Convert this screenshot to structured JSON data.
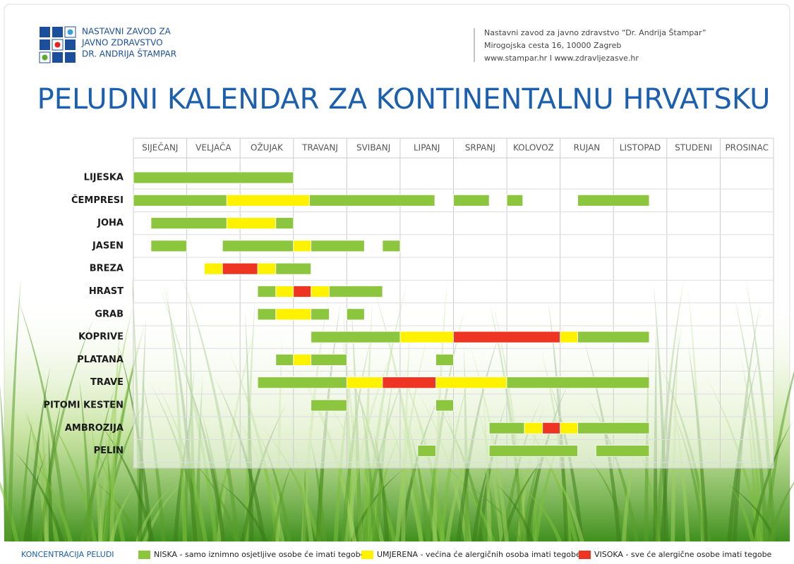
{
  "header": {
    "logo_lines": [
      "NASTAVNI ZAVOD ZA",
      "JAVNO ZDRAVSTVO",
      "DR. ANDRIJA ŠTAMPAR"
    ],
    "address_lines": [
      "Nastavni zavod za javno zdravstvo “Dr. Andrija Štampar”",
      "Mirogojska cesta 16, 10000 Zagreb",
      "www.stampar.hr   I   www.zdravljezasve.hr"
    ]
  },
  "chart_data": {
    "type": "timeline",
    "title": "PELUDNI KALENDAR ZA KONTINENTALNU HRVATSKU",
    "categories": [
      "SIJEČANJ",
      "VELJAČA",
      "OŽUJAK",
      "TRAVANJ",
      "SVIBANJ",
      "LIPANJ",
      "SRPANJ",
      "KOLOVOZ",
      "RUJAN",
      "LISTOPAD",
      "STUDENI",
      "PROSINAC"
    ],
    "xlim": [
      0,
      12
    ],
    "legend_title": "KONCENTRACIJA PELUDI",
    "legend": [
      {
        "name": "NISKA",
        "description": " - samo iznimno osjetljive osobe će imati tegobe",
        "color": "#8cc63f"
      },
      {
        "name": "UMJERENA",
        "description": " - većina će alergičnih osoba imati tegobe",
        "color": "#fff200"
      },
      {
        "name": "VISOKA",
        "description": "  - sve će alergične osobe imati tegobe",
        "color": "#ee3524"
      }
    ],
    "rows": [
      {
        "name": "LIJESKA",
        "segments": [
          {
            "start": 0,
            "end": 3,
            "color": "#8cc63f"
          }
        ]
      },
      {
        "name": "ČEMPRESI",
        "segments": [
          {
            "start": 0,
            "end": 1.75,
            "color": "#8cc63f"
          },
          {
            "start": 1.75,
            "end": 3.3,
            "color": "#fff200"
          },
          {
            "start": 3.3,
            "end": 5.65,
            "color": "#8cc63f"
          },
          {
            "start": 6,
            "end": 6.67,
            "color": "#8cc63f"
          },
          {
            "start": 7,
            "end": 7.3,
            "color": "#8cc63f"
          },
          {
            "start": 8.33,
            "end": 9.67,
            "color": "#8cc63f"
          }
        ]
      },
      {
        "name": "JOHA",
        "segments": [
          {
            "start": 0.33,
            "end": 1.75,
            "color": "#8cc63f"
          },
          {
            "start": 1.75,
            "end": 2.67,
            "color": "#fff200"
          },
          {
            "start": 2.67,
            "end": 3,
            "color": "#8cc63f"
          }
        ]
      },
      {
        "name": "JASEN",
        "segments": [
          {
            "start": 0.33,
            "end": 1,
            "color": "#8cc63f"
          },
          {
            "start": 1.67,
            "end": 3,
            "color": "#8cc63f"
          },
          {
            "start": 3,
            "end": 3.33,
            "color": "#fff200"
          },
          {
            "start": 3.33,
            "end": 4.33,
            "color": "#8cc63f"
          },
          {
            "start": 4.67,
            "end": 5,
            "color": "#8cc63f"
          }
        ]
      },
      {
        "name": "BREZA",
        "segments": [
          {
            "start": 1.33,
            "end": 1.67,
            "color": "#fff200"
          },
          {
            "start": 1.67,
            "end": 2.33,
            "color": "#ee3524"
          },
          {
            "start": 2.33,
            "end": 2.67,
            "color": "#fff200"
          },
          {
            "start": 2.67,
            "end": 3.33,
            "color": "#8cc63f"
          }
        ]
      },
      {
        "name": "HRAST",
        "segments": [
          {
            "start": 2.33,
            "end": 2.67,
            "color": "#8cc63f"
          },
          {
            "start": 2.67,
            "end": 3,
            "color": "#fff200"
          },
          {
            "start": 3,
            "end": 3.33,
            "color": "#ee3524"
          },
          {
            "start": 3.33,
            "end": 3.67,
            "color": "#fff200"
          },
          {
            "start": 3.67,
            "end": 4.67,
            "color": "#8cc63f"
          }
        ]
      },
      {
        "name": "GRAB",
        "segments": [
          {
            "start": 2.33,
            "end": 2.67,
            "color": "#8cc63f"
          },
          {
            "start": 2.67,
            "end": 3.33,
            "color": "#fff200"
          },
          {
            "start": 3.33,
            "end": 3.67,
            "color": "#8cc63f"
          },
          {
            "start": 4,
            "end": 4.33,
            "color": "#8cc63f"
          }
        ]
      },
      {
        "name": "KOPRIVE",
        "segments": [
          {
            "start": 3.33,
            "end": 5,
            "color": "#8cc63f"
          },
          {
            "start": 5,
            "end": 6,
            "color": "#fff200"
          },
          {
            "start": 6,
            "end": 8,
            "color": "#ee3524"
          },
          {
            "start": 8,
            "end": 8.33,
            "color": "#fff200"
          },
          {
            "start": 8.33,
            "end": 9.67,
            "color": "#8cc63f"
          }
        ]
      },
      {
        "name": "PLATANA",
        "segments": [
          {
            "start": 2.67,
            "end": 3,
            "color": "#8cc63f"
          },
          {
            "start": 3,
            "end": 3.33,
            "color": "#fff200"
          },
          {
            "start": 3.33,
            "end": 4,
            "color": "#8cc63f"
          },
          {
            "start": 5.67,
            "end": 6,
            "color": "#8cc63f"
          }
        ]
      },
      {
        "name": "TRAVE",
        "segments": [
          {
            "start": 2.33,
            "end": 4,
            "color": "#8cc63f"
          },
          {
            "start": 4,
            "end": 4.67,
            "color": "#fff200"
          },
          {
            "start": 4.67,
            "end": 5.67,
            "color": "#ee3524"
          },
          {
            "start": 5.67,
            "end": 7,
            "color": "#fff200"
          },
          {
            "start": 7,
            "end": 9.67,
            "color": "#8cc63f"
          }
        ]
      },
      {
        "name": "PITOMI KESTEN",
        "segments": [
          {
            "start": 3.33,
            "end": 4,
            "color": "#8cc63f"
          },
          {
            "start": 5.67,
            "end": 6,
            "color": "#8cc63f"
          }
        ]
      },
      {
        "name": "AMBROZIJA",
        "segments": [
          {
            "start": 6.67,
            "end": 7.33,
            "color": "#8cc63f"
          },
          {
            "start": 7.33,
            "end": 7.67,
            "color": "#fff200"
          },
          {
            "start": 7.67,
            "end": 8,
            "color": "#ee3524"
          },
          {
            "start": 8,
            "end": 8.33,
            "color": "#fff200"
          },
          {
            "start": 8.33,
            "end": 9.67,
            "color": "#8cc63f"
          }
        ]
      },
      {
        "name": "PELIN",
        "segments": [
          {
            "start": 5.33,
            "end": 5.67,
            "color": "#8cc63f"
          },
          {
            "start": 6.67,
            "end": 8.33,
            "color": "#8cc63f"
          },
          {
            "start": 8.67,
            "end": 9.67,
            "color": "#8cc63f"
          }
        ]
      }
    ]
  }
}
